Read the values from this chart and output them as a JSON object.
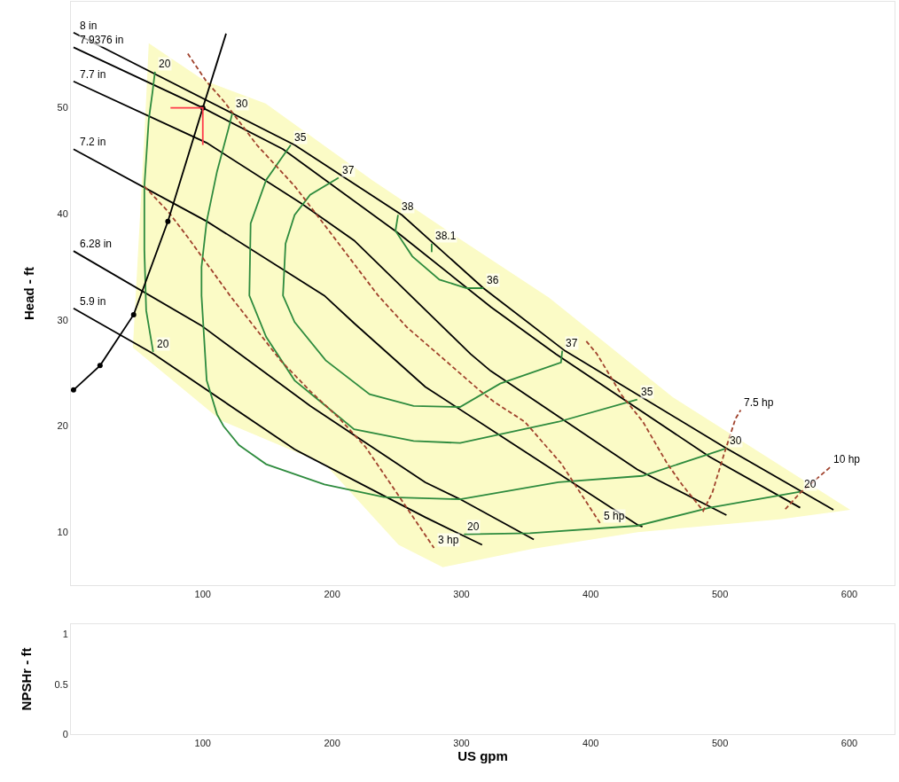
{
  "chart_data": [
    {
      "type": "line",
      "ylabel": "Head - ft",
      "xlim": [
        -2,
        635
      ],
      "xticks": [
        100,
        200,
        300,
        400,
        500,
        600
      ],
      "ylim": [
        5,
        60
      ],
      "yticks": [
        10,
        20,
        30,
        40,
        50
      ],
      "legend": false,
      "series": [
        {
          "type": "area",
          "color": "#fbfbc6",
          "x": [
            58.2,
            100.7,
            148.6,
            230.8,
            299.3,
            367.8,
            463.7,
            600.7,
            545.9,
            436.3,
            354.1,
            285.6,
            251.4,
            194.5,
            114.4,
            45.9,
            49.3,
            54.8
          ],
          "values": [
            56.1,
            52.6,
            50.4,
            43.2,
            37.6,
            32.1,
            22.7,
            12.1,
            11.2,
            10.0,
            8.4,
            6.7,
            8.8,
            16.4,
            20.5,
            27.4,
            35.0,
            47.3
          ]
        },
        {
          "name": "8 in",
          "color": "#000000",
          "x": [
            0,
            171,
            254,
            317,
            380,
            505,
            587.7
          ],
          "values": [
            57.1,
            46.5,
            39.9,
            33.0,
            27.1,
            17.9,
            12.1
          ]
        },
        {
          "name": "7.9376 in",
          "color": "#000000",
          "x": [
            0,
            100,
            162,
            251,
            323,
            373,
            492,
            562
          ],
          "values": [
            55.7,
            50,
            46.1,
            38.2,
            31.2,
            26.8,
            17.1,
            12.3
          ]
        },
        {
          "name": "7.7 in",
          "color": "#000000",
          "x": [
            0,
            103,
            176,
            217,
            307,
            322.6,
            436,
            505
          ],
          "values": [
            52.5,
            46.7,
            41.0,
            37.5,
            26.8,
            25.2,
            15.9,
            11.6
          ]
        },
        {
          "name": "7.2 in",
          "color": "#000000",
          "x": [
            0,
            103,
            194,
            217,
            272,
            436,
            440
          ],
          "values": [
            46.1,
            39.3,
            32.3,
            29.7,
            23.7,
            10.7,
            10.5
          ]
        },
        {
          "name": "6.28 in",
          "color": "#000000",
          "x": [
            0,
            98.6,
            183,
            272,
            299,
            356
          ],
          "values": [
            36.5,
            29.5,
            21.9,
            14.7,
            13.1,
            9.3
          ]
        },
        {
          "name": "5.9 in",
          "color": "#000000",
          "x": [
            0,
            62,
            171,
            272,
            299,
            316
          ],
          "values": [
            31.1,
            26.8,
            17.8,
            11.4,
            9.8,
            8.8
          ]
        },
        {
          "color": "#2e8b3e",
          "x": [
            63,
            61,
            58.2,
            54.8,
            54.8,
            56.2,
            61.6
          ],
          "values": [
            53.4,
            51.4,
            48.9,
            42.6,
            36.6,
            30.9,
            27.0
          ]
        },
        {
          "color": "#2e8b3e",
          "x": [
            123,
            120,
            111,
            103,
            99,
            99,
            103,
            111,
            116,
            128,
            149,
            194,
            240,
            299,
            375,
            440,
            505
          ],
          "values": [
            49.6,
            48.1,
            44.0,
            39.3,
            35.0,
            32.3,
            24.3,
            21.1,
            20.0,
            18.2,
            16.4,
            14.5,
            13.3,
            13.1,
            14.7,
            15.3,
            17.9
          ]
        },
        {
          "color": "#2e8b3e",
          "x": [
            168,
            149,
            137,
            136,
            149,
            171,
            195,
            217,
            263,
            299,
            375,
            436
          ],
          "values": [
            46.5,
            43.2,
            39.1,
            32.3,
            28.4,
            24.3,
            21.9,
            19.7,
            18.6,
            18.4,
            20.4,
            22.5
          ]
        },
        {
          "color": "#2e8b3e",
          "x": [
            205,
            183,
            171,
            164,
            162,
            171,
            195,
            229,
            263,
            299,
            330,
            377,
            378
          ],
          "values": [
            43.4,
            41.8,
            39.9,
            37.2,
            32.3,
            29.8,
            26.2,
            23.0,
            21.9,
            21.8,
            24.0,
            26.0,
            27.1
          ]
        },
        {
          "color": "#2e8b3e",
          "x": [
            251,
            249,
            262,
            283,
            304,
            317
          ],
          "values": [
            39.9,
            38.4,
            36.0,
            33.8,
            33.0,
            33.0
          ]
        },
        {
          "color": "#2e8b3e",
          "x": [
            277,
            277
          ],
          "values": [
            37.2,
            36.4
          ]
        },
        {
          "color": "#2e8b3e",
          "x": [
            302,
            353,
            436,
            492,
            562
          ],
          "values": [
            9.8,
            9.9,
            10.6,
            12.3,
            13.8
          ]
        },
        {
          "color": "#a0422d",
          "line_style": "dashed",
          "x": [
            88.4,
            102.7,
            116.4,
            141.8,
            171.2,
            194.5,
            235.6,
            258,
            283.6,
            313.7,
            325,
            349,
            377,
            407.5
          ],
          "values": [
            55.1,
            52.5,
            50.6,
            46.5,
            42.6,
            38.9,
            32.3,
            29.3,
            26.6,
            23.4,
            22.3,
            20.4,
            16.5,
            10.8
          ]
        },
        {
          "color": "#a0422d",
          "line_style": "dashed",
          "x": [
            54.8,
            73.3,
            89,
            121,
            137,
            160,
            183,
            205,
            226,
            246.6,
            278.8
          ],
          "values": [
            42.6,
            40.2,
            37.7,
            32.3,
            29.8,
            26.2,
            23.3,
            20.8,
            18.0,
            14.3,
            8.5
          ]
        },
        {
          "color": "#a0422d",
          "line_style": "dashed",
          "x": [
            396.6,
            404.8,
            424,
            440.4,
            459,
            470.5,
            487,
            494,
            503,
            512,
            516
          ],
          "values": [
            28.0,
            26.8,
            22.9,
            20.4,
            16.5,
            14.5,
            12.0,
            13.7,
            17.3,
            20.7,
            21.5
          ]
        },
        {
          "color": "#a0422d",
          "line_style": "dashed",
          "x": [
            585,
            562,
            550
          ],
          "values": [
            16.1,
            13.7,
            12.1
          ]
        },
        {
          "color": "#000000",
          "marker": "circle",
          "x": [
            0,
            20.5,
            46.5,
            73,
            100
          ],
          "values": [
            23.4,
            25.7,
            30.5,
            39.3,
            50
          ]
        },
        {
          "color": "#000000",
          "x": [
            100,
            118
          ],
          "values": [
            50,
            57
          ]
        },
        {
          "color": "#ff3b4a",
          "x": [
            75,
            100,
            100
          ],
          "values": [
            50,
            50,
            46.5
          ]
        }
      ],
      "annotations": [
        {
          "text": "20",
          "x": 63,
          "y": 53.4
        },
        {
          "text": "30",
          "x": 123,
          "y": 49.6
        },
        {
          "text": "35",
          "x": 168,
          "y": 46.5
        },
        {
          "text": "37",
          "x": 205,
          "y": 43.4
        },
        {
          "text": "38",
          "x": 251,
          "y": 39.9
        },
        {
          "text": "38.1",
          "x": 277,
          "y": 37.2
        },
        {
          "text": "36",
          "x": 317,
          "y": 33.0
        },
        {
          "text": "37",
          "x": 378,
          "y": 27.1
        },
        {
          "text": "35",
          "x": 436,
          "y": 22.5
        },
        {
          "text": "30",
          "x": 505,
          "y": 17.9
        },
        {
          "text": "20",
          "x": 562,
          "y": 13.8
        },
        {
          "text": "20",
          "x": 61.6,
          "y": 27.0
        },
        {
          "text": "20",
          "x": 302,
          "y": 9.8
        },
        {
          "text": "3 hp",
          "x": 278.8,
          "y": 8.5
        },
        {
          "text": "5 hp",
          "x": 407.5,
          "y": 10.8
        },
        {
          "text": "7.5 hp",
          "x": 516,
          "y": 21.5
        },
        {
          "text": "10 hp",
          "x": 585,
          "y": 16.1
        }
      ]
    },
    {
      "type": "line",
      "xlabel": "US gpm",
      "ylabel": "NPSHr - ft",
      "xlim": [
        -2,
        635
      ],
      "xticks": [
        100,
        200,
        300,
        400,
        500,
        600
      ],
      "ylim": [
        0,
        1.1
      ],
      "yticks": [
        0,
        0.5,
        1
      ],
      "legend": false
    }
  ]
}
